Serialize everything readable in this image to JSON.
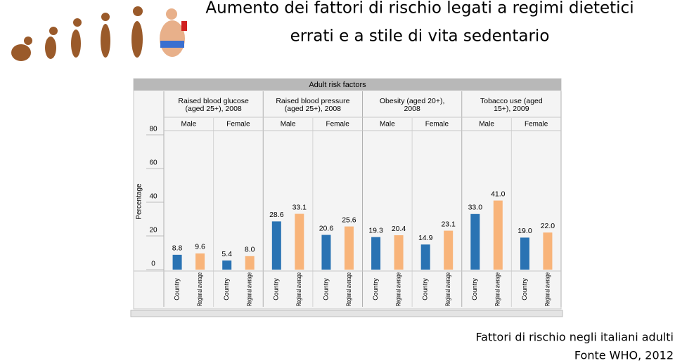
{
  "slide": {
    "title_lines": [
      "Aumento dei fattori di rischio legati a regimi dietetici",
      "errati e a stile di vita sedentario"
    ],
    "caption": "Fattori di rischio negli italiani adulti",
    "source": "Fonte WHO, 2012"
  },
  "chart_data": {
    "type": "bar",
    "title": "Adult risk factors",
    "y_label": "Percentage",
    "groups": [
      [
        "Raised blood glucose",
        "(aged 25+), 2008"
      ],
      [
        "Raised blood pressure",
        "(aged 25+), 2008"
      ],
      [
        "Obesity (aged 20+),",
        "2008"
      ],
      [
        "Tobacco use (aged",
        "15+), 2009"
      ]
    ],
    "categories": [
      "Male",
      "Female",
      "Male",
      "Female",
      "Male",
      "Female",
      "Male",
      "Female"
    ],
    "series": [
      {
        "name": "Country",
        "color": "#2a73b3",
        "values": [
          8.8,
          5.4,
          28.6,
          20.6,
          19.3,
          14.9,
          33.0,
          19.0
        ],
        "value_labels": [
          "8.8",
          "5.4",
          "28.6",
          "20.6",
          "19.3",
          "14.9",
          "33.0",
          "19.0"
        ]
      },
      {
        "name": "Regional average",
        "color": "#f8b47a",
        "values": [
          9.6,
          8.0,
          33.1,
          25.6,
          20.4,
          23.1,
          41.0,
          22.0
        ],
        "value_labels": [
          "9.6",
          "8.0",
          "33.1",
          "25.6",
          "20.4",
          "23.1",
          "41.0",
          "22.0"
        ]
      }
    ],
    "ylim": [
      0,
      80
    ],
    "yticks": [
      0,
      20,
      40,
      60,
      80
    ]
  }
}
